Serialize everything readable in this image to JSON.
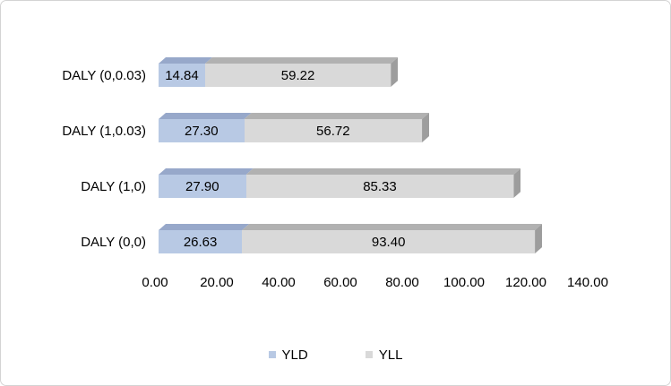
{
  "frame": {
    "background": "#ffffff",
    "border_color": "#d4d4d4"
  },
  "chart_data": {
    "type": "bar",
    "orientation": "horizontal",
    "stacked": true,
    "effect": "3d",
    "title": "",
    "xlabel": "",
    "ylabel": "",
    "categories": [
      "DALY (0,0.03)",
      "DALY (1,0.03)",
      "DALY (1,0)",
      "DALY (0,0)"
    ],
    "series": [
      {
        "name": "YLD",
        "values": [
          14.84,
          27.3,
          27.9,
          26.63
        ],
        "labels": [
          "14.84",
          "27.30",
          "27.90",
          "26.63"
        ],
        "color": "#b8c9e4",
        "shade_top": "#97a8ca",
        "shade_side": "#8497ba"
      },
      {
        "name": "YLL",
        "values": [
          59.22,
          56.72,
          85.33,
          93.4
        ],
        "labels": [
          "59.22",
          "56.72",
          "85.33",
          "93.40"
        ],
        "color": "#d9d9d9",
        "shade_top": "#b1b1b1",
        "shade_side": "#9d9d9d"
      }
    ],
    "totals": [
      74.06,
      84.02,
      113.23,
      120.03
    ],
    "xlim": [
      0,
      140
    ],
    "x_ticks": [
      "0.00",
      "20.00",
      "40.00",
      "60.00",
      "80.00",
      "100.00",
      "120.00",
      "140.00"
    ],
    "x_tick_values": [
      0,
      20,
      40,
      60,
      80,
      100,
      120,
      140
    ],
    "grid": false,
    "axis_lines": false,
    "legend": {
      "position": "bottom",
      "entries": [
        "YLD",
        "YLL"
      ]
    },
    "text_color": "#000000"
  }
}
